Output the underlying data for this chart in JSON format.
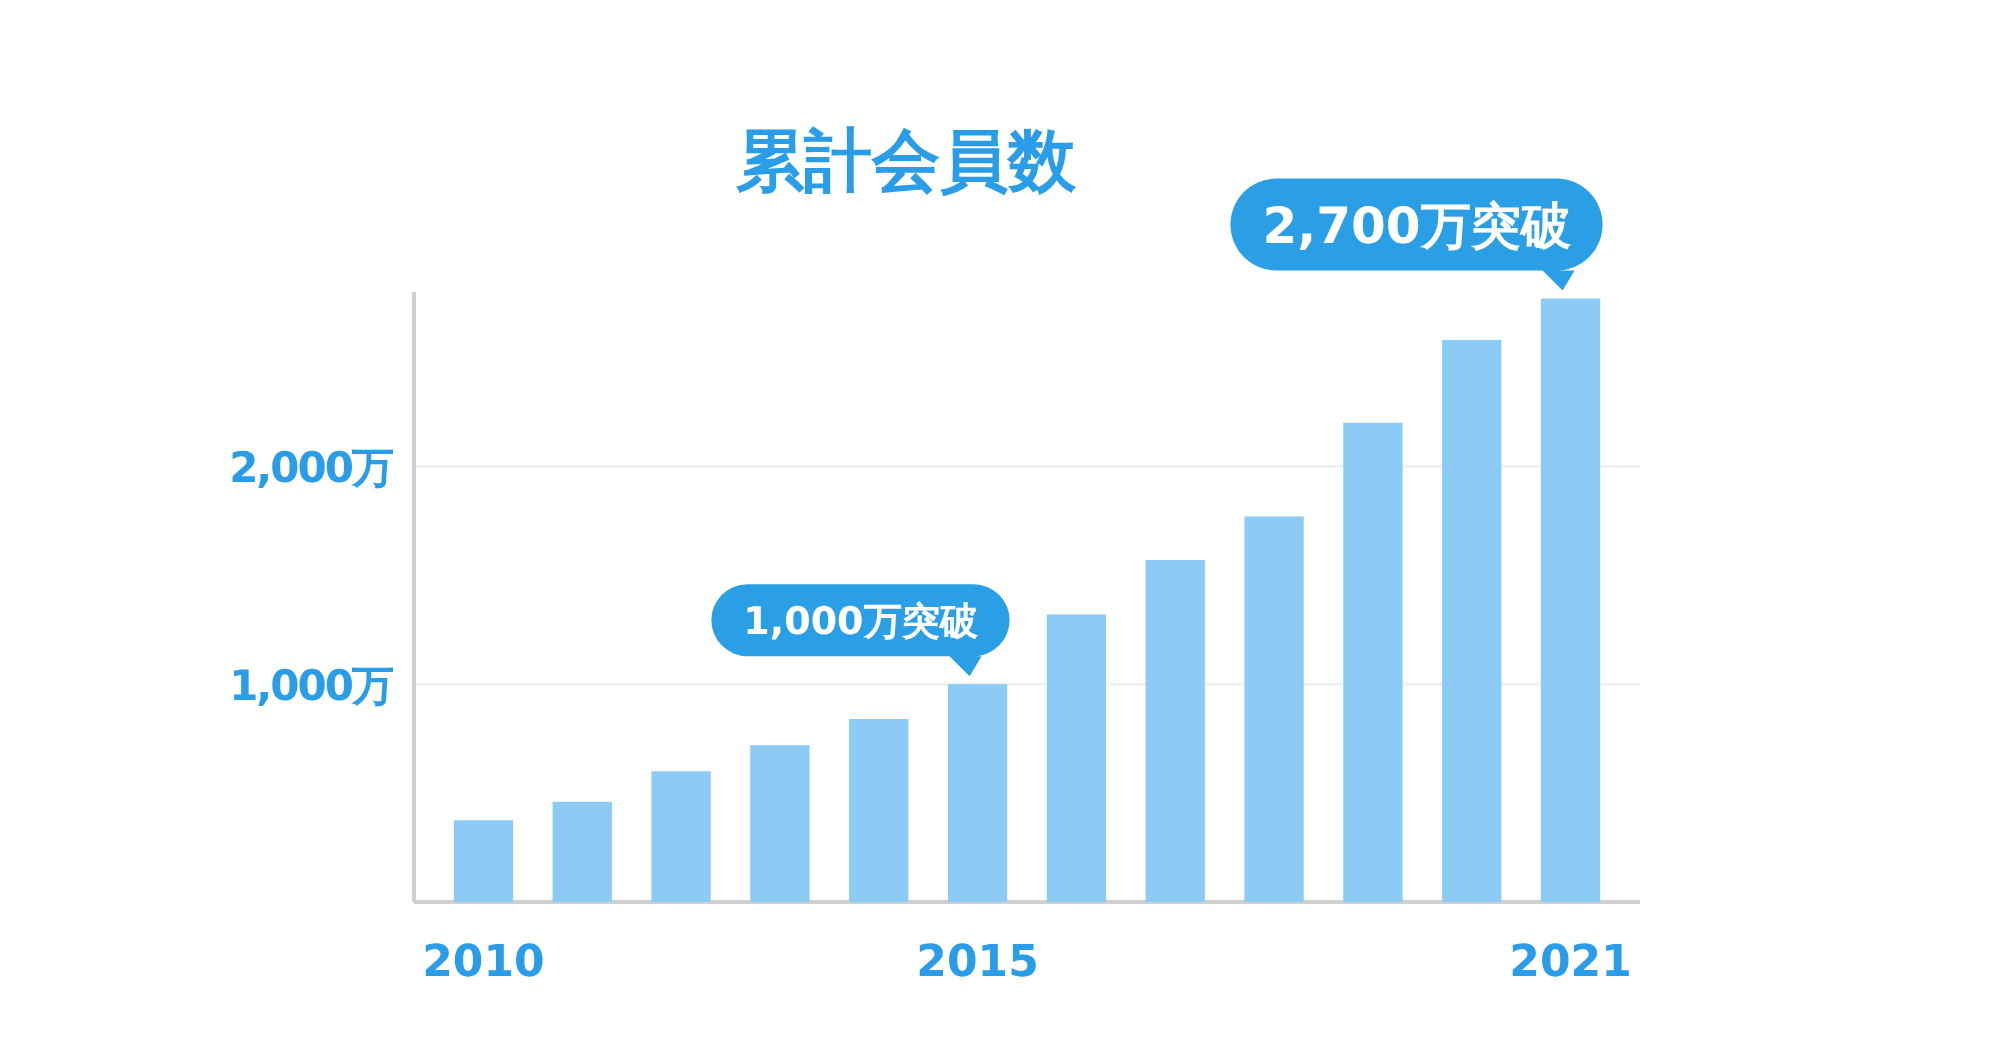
{
  "chart_data": {
    "type": "bar",
    "title": "累計会員数",
    "categories": [
      "2010",
      null,
      null,
      null,
      null,
      "2015",
      null,
      null,
      null,
      null,
      null,
      "2021"
    ],
    "values": [
      375,
      460,
      600,
      720,
      840,
      1000,
      1320,
      1570,
      1770,
      2200,
      2580,
      2770
    ],
    "color": "#8ccbf5",
    "ylim": [
      0,
      2800
    ],
    "yticks": [
      {
        "value": 1000,
        "label": "1,000万"
      },
      {
        "value": 2000,
        "label": "2,000万"
      }
    ],
    "grid": "y",
    "annotations": [
      {
        "text": "1,000万突破",
        "x": "2015",
        "y": 1000
      },
      {
        "text": "2,700万突破",
        "x": "2021",
        "y": 2770
      }
    ]
  }
}
